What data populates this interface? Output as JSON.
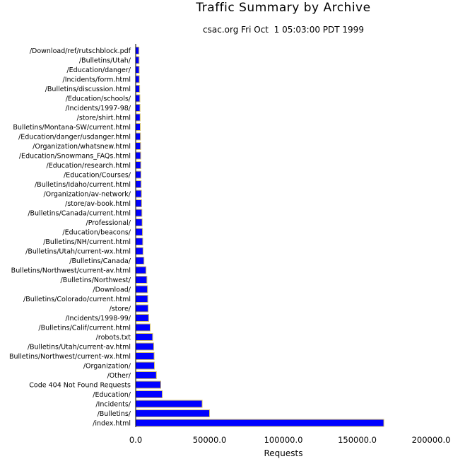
{
  "chart_data": {
    "type": "bar",
    "orientation": "horizontal",
    "title": "Traffic Summary by Archive",
    "subtitle": "csac.org Fri Oct  1 05:03:00 PDT 1999",
    "xlabel": "Requests",
    "ylabel": "",
    "xlim": [
      0,
      200000
    ],
    "xticks": [
      "0.0",
      "50000.0",
      "100000.0",
      "150000.0",
      "200000.0"
    ],
    "xtick_values": [
      0,
      50000,
      100000,
      150000,
      200000
    ],
    "bar_color": "#0000ff",
    "bar_edge_color": "#d8c46a",
    "categories": [
      "/Download/ref/rutschblock.pdf",
      "/Bulletins/Utah/",
      "/Education/danger/",
      "/Incidents/form.html",
      "/Bulletins/discussion.html",
      "/Education/schools/",
      "/Incidents/1997-98/",
      "/store/shirt.html",
      "Bulletins/Montana-SW/current.html",
      "/Education/danger/usdanger.html",
      "/Organization/whatsnew.html",
      "/Education/Snowmans_FAQs.html",
      "/Education/research.html",
      "/Education/Courses/",
      "/Bulletins/Idaho/current.html",
      "/Organization/av-network/",
      "/store/av-book.html",
      "/Bulletins/Canada/current.html",
      "/Professional/",
      "/Education/beacons/",
      "/Bulletins/NH/current.html",
      "/Bulletins/Utah/current-wx.html",
      "/Bulletins/Canada/",
      "Bulletins/Northwest/current-av.html",
      "/Bulletins/Northwest/",
      "/Download/",
      "/Bulletins/Colorado/current.html",
      "/store/",
      "/Incidents/1998-99/",
      "/Bulletins/Calif/current.html",
      "/robots.txt",
      "/Bulletins/Utah/current-av.html",
      "Bulletins/Northwest/current-wx.html",
      "/Organization/",
      "/Other/",
      "Code 404 Not Found Requests",
      "/Education/",
      "/Incidents/",
      "/Bulletins/",
      "/index.html"
    ],
    "values": [
      2200,
      2300,
      2400,
      2500,
      2700,
      2800,
      2900,
      3000,
      3100,
      3200,
      3300,
      3400,
      3500,
      3600,
      3700,
      3900,
      4000,
      4200,
      4400,
      4600,
      4800,
      5000,
      5600,
      7000,
      7600,
      8000,
      8200,
      8400,
      8800,
      9800,
      11500,
      12200,
      12500,
      12700,
      14000,
      17000,
      18000,
      45000,
      50000,
      168000
    ]
  }
}
